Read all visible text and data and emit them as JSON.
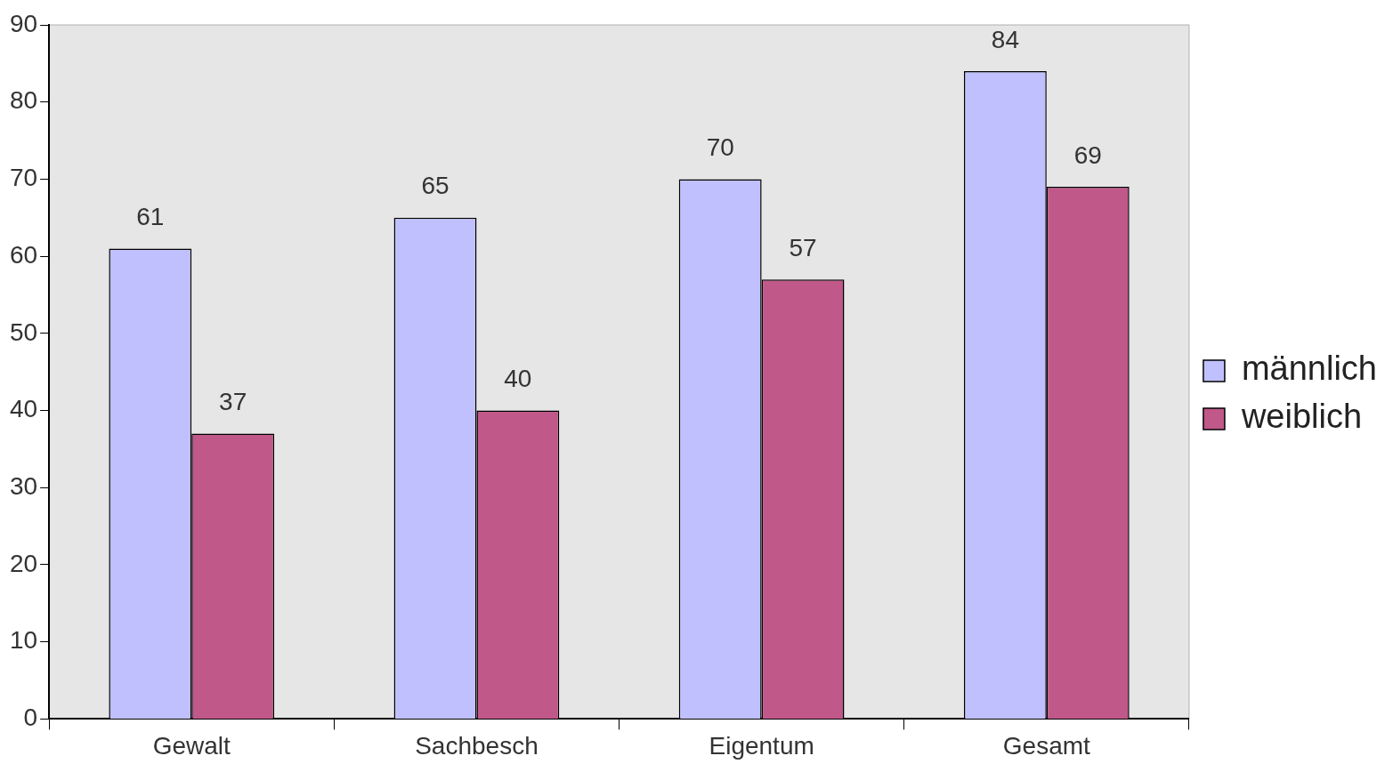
{
  "chart_data": {
    "type": "bar",
    "categories": [
      "Gewalt",
      "Sachbesch",
      "Eigentum",
      "Gesamt"
    ],
    "series": [
      {
        "name": "männlich",
        "color": "#c0c0ff",
        "values": [
          61,
          65,
          70,
          84
        ]
      },
      {
        "name": "weiblich",
        "color": "#c0588a",
        "values": [
          37,
          40,
          57,
          69
        ]
      }
    ],
    "ylim": [
      0,
      90
    ],
    "yticks": [
      0,
      10,
      20,
      30,
      40,
      50,
      60,
      70,
      80,
      90
    ],
    "grid": false,
    "legend": "right",
    "data_labels": true
  }
}
